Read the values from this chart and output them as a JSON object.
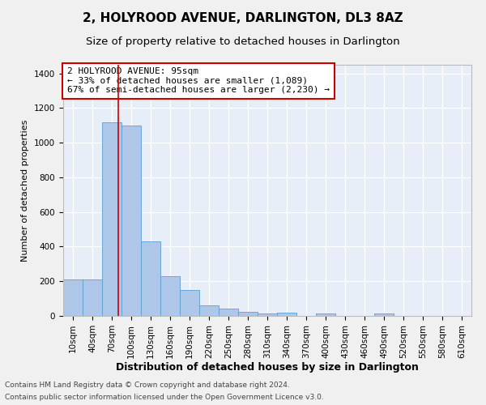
{
  "title": "2, HOLYROOD AVENUE, DARLINGTON, DL3 8AZ",
  "subtitle": "Size of property relative to detached houses in Darlington",
  "xlabel": "Distribution of detached houses by size in Darlington",
  "ylabel": "Number of detached properties",
  "footnote1": "Contains HM Land Registry data © Crown copyright and database right 2024.",
  "footnote2": "Contains public sector information licensed under the Open Government Licence v3.0.",
  "annotation_line1": "2 HOLYROOD AVENUE: 95sqm",
  "annotation_line2": "← 33% of detached houses are smaller (1,089)",
  "annotation_line3": "67% of semi-detached houses are larger (2,230) →",
  "bar_color": "#aec6e8",
  "bar_edge_color": "#5a9fd4",
  "red_line_x": 95,
  "categories": [
    10,
    40,
    70,
    100,
    130,
    160,
    190,
    220,
    250,
    280,
    310,
    340,
    370,
    400,
    430,
    460,
    490,
    520,
    550,
    580,
    610
  ],
  "bin_width": 30,
  "bar_heights": [
    210,
    210,
    1120,
    1100,
    430,
    230,
    150,
    60,
    40,
    25,
    15,
    20,
    0,
    15,
    0,
    0,
    15,
    0,
    0,
    0,
    0
  ],
  "ylim": [
    0,
    1450
  ],
  "yticks": [
    0,
    200,
    400,
    600,
    800,
    1000,
    1200,
    1400
  ],
  "fig_bg_color": "#f0f0f0",
  "axes_bg_color": "#e8eef8",
  "grid_color": "#ffffff",
  "annotation_box_facecolor": "#ffffff",
  "annotation_box_edgecolor": "#cc0000",
  "red_line_color": "#cc0000",
  "title_fontsize": 11,
  "subtitle_fontsize": 9.5,
  "ylabel_fontsize": 8,
  "xlabel_fontsize": 9,
  "tick_fontsize": 7.5,
  "annotation_fontsize": 8,
  "footnote_fontsize": 6.5
}
